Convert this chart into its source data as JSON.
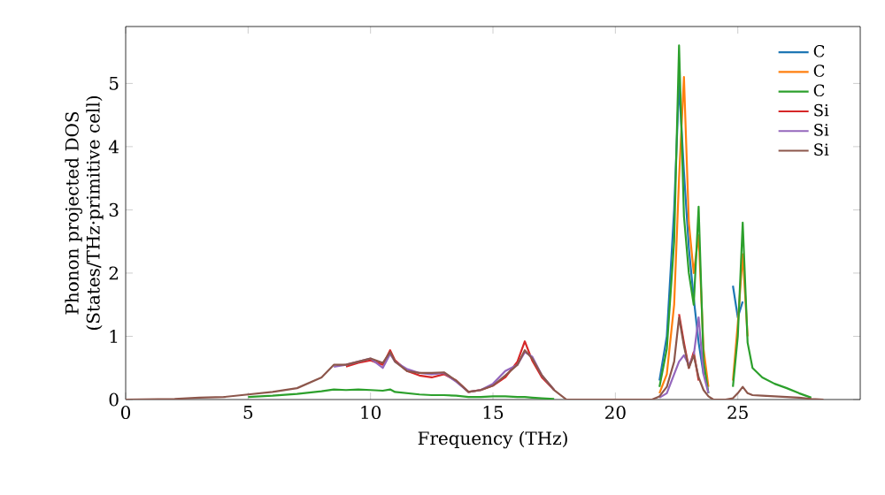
{
  "chart_data": {
    "type": "line",
    "xlabel": "Frequency (THz)",
    "ylabel": "Phonon projected DOS (States/THz·primitive cell)",
    "xlim": [
      0,
      30
    ],
    "ylim": [
      0,
      5.9
    ],
    "xticks": [
      0,
      5,
      10,
      15,
      20,
      25
    ],
    "yticks": [
      0,
      1,
      2,
      3,
      4,
      5
    ],
    "grid": false,
    "legend": "top right",
    "marker": "none",
    "line_style": "solid",
    "x": [
      0,
      2,
      3,
      4,
      5,
      6,
      7,
      8,
      8.5,
      9,
      9.5,
      10,
      10.5,
      10.8,
      11,
      11.5,
      12,
      12.5,
      13,
      13.5,
      14,
      14.5,
      15,
      15.5,
      16,
      16.3,
      16.6,
      17,
      17.5,
      18,
      21.5,
      21.8,
      22.1,
      22.4,
      22.6,
      22.8,
      23.0,
      23.2,
      23.4,
      23.6,
      23.8,
      24.0,
      24.2,
      24.5,
      24.8,
      25.0,
      25.2,
      25.4,
      25.6,
      26,
      26.5,
      27,
      27.5,
      28,
      28.5
    ],
    "series": [
      {
        "name": "C",
        "color": "#1f77b4",
        "values": [
          null,
          null,
          null,
          null,
          null,
          null,
          null,
          null,
          null,
          null,
          null,
          null,
          null,
          null,
          null,
          null,
          null,
          null,
          null,
          null,
          null,
          null,
          null,
          null,
          null,
          null,
          null,
          null,
          null,
          null,
          null,
          0.3,
          1.0,
          3.0,
          5.0,
          3.6,
          2.4,
          1.6,
          0.9,
          0.4,
          null,
          null,
          null,
          null,
          1.8,
          1.3,
          1.55,
          null,
          null,
          null,
          null,
          null,
          null,
          null,
          null
        ]
      },
      {
        "name": "C",
        "color": "#ff7f0e",
        "values": [
          null,
          null,
          null,
          null,
          null,
          null,
          null,
          null,
          null,
          null,
          null,
          null,
          null,
          null,
          null,
          null,
          null,
          null,
          null,
          null,
          null,
          null,
          null,
          null,
          null,
          null,
          null,
          null,
          null,
          null,
          null,
          0.1,
          0.4,
          1.5,
          3.5,
          5.1,
          2.8,
          2.0,
          2.6,
          0.8,
          0.2,
          null,
          null,
          null,
          0.3,
          1.2,
          2.3,
          1.0,
          null,
          null,
          null,
          null,
          null,
          null,
          null
        ]
      },
      {
        "name": "C",
        "color": "#2ca02c",
        "values": [
          null,
          null,
          null,
          null,
          0.04,
          0.06,
          0.09,
          0.13,
          0.16,
          0.15,
          0.16,
          0.15,
          0.14,
          0.16,
          0.12,
          0.1,
          0.08,
          0.07,
          0.07,
          0.06,
          0.04,
          0.04,
          0.05,
          0.05,
          0.04,
          0.04,
          0.03,
          0.02,
          0.01,
          null,
          null,
          0.2,
          0.8,
          2.5,
          5.6,
          2.9,
          2.0,
          1.5,
          3.05,
          0.6,
          0.1,
          null,
          null,
          null,
          0.2,
          1.0,
          2.8,
          0.9,
          0.5,
          0.35,
          0.25,
          0.18,
          0.1,
          0.03,
          null
        ]
      },
      {
        "name": "Si",
        "color": "#d62728",
        "values": [
          null,
          null,
          null,
          null,
          null,
          null,
          null,
          null,
          null,
          0.52,
          0.58,
          0.62,
          0.55,
          0.78,
          0.62,
          0.45,
          0.38,
          0.35,
          0.4,
          0.3,
          0.12,
          0.15,
          0.22,
          0.35,
          0.6,
          0.92,
          0.62,
          0.35,
          0.15,
          null,
          null,
          null,
          null,
          null,
          1.35,
          0.9,
          0.5,
          0.75,
          0.3,
          null,
          null,
          null,
          null,
          null,
          null,
          null,
          null,
          null,
          null,
          null,
          null,
          null,
          null,
          null,
          null
        ]
      },
      {
        "name": "Si",
        "color": "#9467bd",
        "values": [
          null,
          null,
          null,
          null,
          null,
          null,
          null,
          null,
          0.52,
          0.55,
          0.6,
          0.65,
          0.5,
          0.72,
          0.6,
          0.48,
          0.42,
          0.4,
          0.42,
          0.28,
          0.12,
          0.15,
          0.25,
          0.45,
          0.55,
          0.75,
          0.68,
          0.38,
          0.15,
          null,
          null,
          0.03,
          0.1,
          0.4,
          0.6,
          0.7,
          0.55,
          0.7,
          1.3,
          0.4,
          0.1,
          null,
          null,
          null,
          null,
          null,
          null,
          null,
          null,
          null,
          null,
          null,
          null,
          null,
          null
        ]
      },
      {
        "name": "Si",
        "color": "#8c564b",
        "values": [
          0,
          0.01,
          0.03,
          0.04,
          0.08,
          0.12,
          0.18,
          0.35,
          0.55,
          0.55,
          0.6,
          0.65,
          0.58,
          0.75,
          0.6,
          0.45,
          0.42,
          0.42,
          0.43,
          0.3,
          0.12,
          0.15,
          0.22,
          0.38,
          0.55,
          0.78,
          0.65,
          0.38,
          0.15,
          0,
          0,
          0.05,
          0.2,
          0.6,
          1.3,
          0.85,
          0.5,
          0.7,
          0.35,
          0.15,
          0.05,
          0,
          0,
          0,
          0.02,
          0.1,
          0.2,
          0.1,
          0.07,
          0.06,
          0.05,
          0.04,
          0.03,
          0.01,
          0
        ]
      }
    ]
  }
}
